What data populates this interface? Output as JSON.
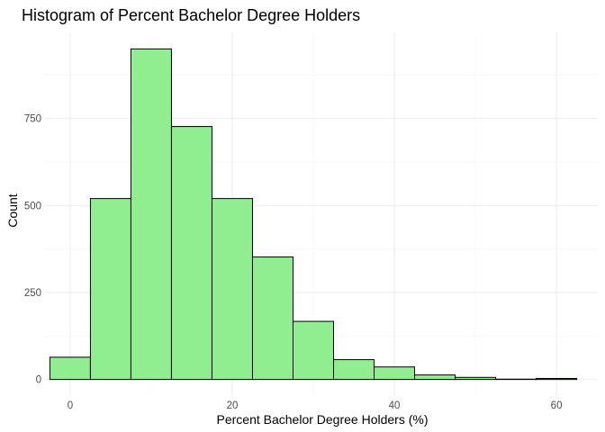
{
  "chart_data": {
    "type": "bar",
    "title": "Histogram of Percent Bachelor Degree Holders",
    "xlabel": "Percent Bachelor Degree Holders (%)",
    "ylabel": "Count",
    "xlim": [
      -3.1,
      65.1
    ],
    "ylim": [
      -47.5,
      997.5
    ],
    "x_ticks": [
      0,
      20,
      40,
      60
    ],
    "y_ticks": [
      0,
      250,
      500,
      750
    ],
    "grid": true,
    "legend": "none",
    "bin_width": 5,
    "bins": [
      {
        "x0": -2.5,
        "x1": 2.5,
        "count": 64
      },
      {
        "x0": 2.5,
        "x1": 7.5,
        "count": 520
      },
      {
        "x0": 7.5,
        "x1": 12.5,
        "count": 950
      },
      {
        "x0": 12.5,
        "x1": 17.5,
        "count": 727
      },
      {
        "x0": 17.5,
        "x1": 22.5,
        "count": 520
      },
      {
        "x0": 22.5,
        "x1": 27.5,
        "count": 352
      },
      {
        "x0": 27.5,
        "x1": 32.5,
        "count": 167
      },
      {
        "x0": 32.5,
        "x1": 37.5,
        "count": 57
      },
      {
        "x0": 37.5,
        "x1": 42.5,
        "count": 36
      },
      {
        "x0": 42.5,
        "x1": 47.5,
        "count": 13
      },
      {
        "x0": 47.5,
        "x1": 52.5,
        "count": 6
      },
      {
        "x0": 52.5,
        "x1": 57.5,
        "count": 1
      },
      {
        "x0": 57.5,
        "x1": 62.5,
        "count": 3
      }
    ],
    "fill_color": "#90ee90",
    "edge_color": "#000000"
  }
}
